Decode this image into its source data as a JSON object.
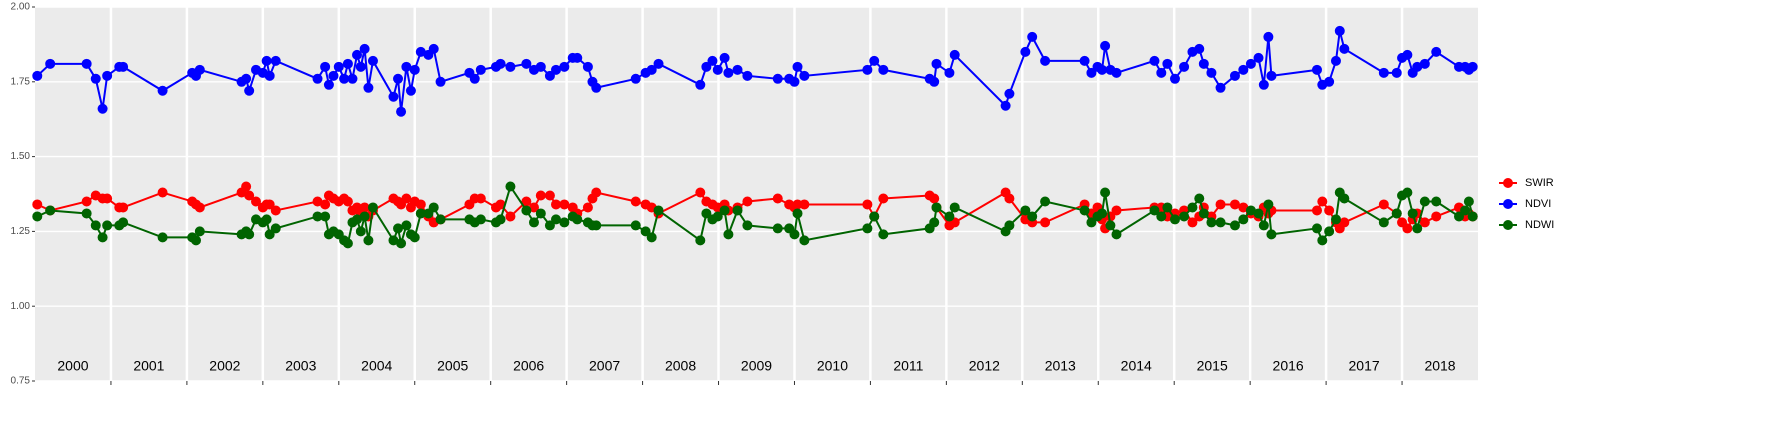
{
  "chart_data": {
    "type": "line",
    "x": [
      2000.03,
      2000.2,
      2000.68,
      2000.8,
      2000.89,
      2000.95,
      2001.11,
      2001.16,
      2001.68,
      2002.07,
      2002.12,
      2002.17,
      2002.72,
      2002.78,
      2002.82,
      2002.91,
      2003.0,
      2003.05,
      2003.09,
      2003.17,
      2003.72,
      2003.82,
      2003.87,
      2003.93,
      2004.0,
      2004.07,
      2004.12,
      2004.18,
      2004.24,
      2004.29,
      2004.34,
      2004.39,
      2004.45,
      2004.72,
      2004.78,
      2004.82,
      2004.89,
      2004.95,
      2005.0,
      2005.08,
      2005.18,
      2005.25,
      2005.34,
      2005.72,
      2005.79,
      2005.87,
      2006.07,
      2006.13,
      2006.26,
      2006.47,
      2006.57,
      2006.66,
      2006.78,
      2006.86,
      2006.97,
      2007.08,
      2007.14,
      2007.28,
      2007.34,
      2007.39,
      2007.91,
      2008.04,
      2008.12,
      2008.21,
      2008.76,
      2008.84,
      2008.92,
      2008.99,
      2009.08,
      2009.13,
      2009.25,
      2009.38,
      2009.78,
      2009.93,
      2010.0,
      2010.04,
      2010.13,
      2010.96,
      2011.05,
      2011.17,
      2011.78,
      2011.84,
      2011.87,
      2012.04,
      2012.11,
      2012.78,
      2012.83,
      2013.04,
      2013.13,
      2013.3,
      2013.82,
      2013.91,
      2013.99,
      2014.05,
      2014.09,
      2014.16,
      2014.24,
      2014.74,
      2014.83,
      2014.91,
      2015.01,
      2015.13,
      2015.24,
      2015.33,
      2015.39,
      2015.49,
      2015.61,
      2015.8,
      2015.91,
      2016.01,
      2016.11,
      2016.18,
      2016.24,
      2016.28,
      2016.88,
      2016.95,
      2017.04,
      2017.13,
      2017.18,
      2017.24,
      2017.76,
      2017.93,
      2018.0,
      2018.07,
      2018.14,
      2018.2,
      2018.3,
      2018.45,
      2018.75,
      2018.83,
      2018.88,
      2018.93
    ],
    "series": [
      {
        "name": "SWIR",
        "color": "#ff0000",
        "values": [
          1.34,
          1.32,
          1.35,
          1.37,
          1.36,
          1.36,
          1.33,
          1.33,
          1.38,
          1.35,
          1.34,
          1.33,
          1.38,
          1.4,
          1.37,
          1.35,
          1.33,
          1.34,
          1.34,
          1.32,
          1.35,
          1.34,
          1.37,
          1.36,
          1.35,
          1.36,
          1.35,
          1.32,
          1.33,
          1.31,
          1.33,
          1.3,
          1.32,
          1.36,
          1.35,
          1.34,
          1.36,
          1.33,
          1.35,
          1.34,
          1.3,
          1.28,
          1.29,
          1.34,
          1.36,
          1.36,
          1.33,
          1.34,
          1.3,
          1.35,
          1.33,
          1.37,
          1.37,
          1.34,
          1.34,
          1.33,
          1.31,
          1.33,
          1.36,
          1.38,
          1.35,
          1.34,
          1.33,
          1.31,
          1.38,
          1.35,
          1.34,
          1.33,
          1.34,
          1.32,
          1.33,
          1.35,
          1.36,
          1.34,
          1.33,
          1.34,
          1.34,
          1.34,
          1.3,
          1.36,
          1.37,
          1.36,
          1.33,
          1.27,
          1.28,
          1.38,
          1.36,
          1.29,
          1.28,
          1.28,
          1.34,
          1.31,
          1.33,
          1.29,
          1.26,
          1.3,
          1.32,
          1.33,
          1.33,
          1.3,
          1.31,
          1.32,
          1.28,
          1.3,
          1.33,
          1.3,
          1.34,
          1.34,
          1.33,
          1.31,
          1.3,
          1.33,
          1.31,
          1.32,
          1.32,
          1.35,
          1.32,
          1.28,
          1.26,
          1.28,
          1.34,
          1.31,
          1.28,
          1.26,
          1.29,
          1.31,
          1.28,
          1.3,
          1.33,
          1.3,
          1.31,
          1.3
        ]
      },
      {
        "name": "NDVI",
        "color": "#0000ff",
        "values": [
          1.77,
          1.81,
          1.81,
          1.76,
          1.66,
          1.77,
          1.8,
          1.8,
          1.72,
          1.78,
          1.77,
          1.79,
          1.75,
          1.76,
          1.72,
          1.79,
          1.78,
          1.82,
          1.77,
          1.82,
          1.76,
          1.8,
          1.74,
          1.77,
          1.8,
          1.76,
          1.81,
          1.76,
          1.84,
          1.8,
          1.86,
          1.73,
          1.82,
          1.7,
          1.76,
          1.65,
          1.8,
          1.72,
          1.79,
          1.85,
          1.84,
          1.86,
          1.75,
          1.78,
          1.76,
          1.79,
          1.8,
          1.81,
          1.8,
          1.81,
          1.79,
          1.8,
          1.77,
          1.79,
          1.8,
          1.83,
          1.83,
          1.8,
          1.75,
          1.73,
          1.76,
          1.78,
          1.79,
          1.81,
          1.74,
          1.8,
          1.82,
          1.79,
          1.83,
          1.78,
          1.79,
          1.77,
          1.76,
          1.76,
          1.75,
          1.8,
          1.77,
          1.79,
          1.82,
          1.79,
          1.76,
          1.75,
          1.81,
          1.78,
          1.84,
          1.67,
          1.71,
          1.85,
          1.9,
          1.82,
          1.82,
          1.78,
          1.8,
          1.79,
          1.87,
          1.79,
          1.78,
          1.82,
          1.78,
          1.81,
          1.76,
          1.8,
          1.85,
          1.86,
          1.81,
          1.78,
          1.73,
          1.77,
          1.79,
          1.81,
          1.83,
          1.74,
          1.9,
          1.77,
          1.79,
          1.74,
          1.75,
          1.82,
          1.92,
          1.86,
          1.78,
          1.78,
          1.83,
          1.84,
          1.78,
          1.8,
          1.81,
          1.85,
          1.8,
          1.8,
          1.79,
          1.8
        ]
      },
      {
        "name": "NDWI",
        "color": "#006400",
        "values": [
          1.3,
          1.32,
          1.31,
          1.27,
          1.23,
          1.27,
          1.27,
          1.28,
          1.23,
          1.23,
          1.22,
          1.25,
          1.24,
          1.25,
          1.24,
          1.29,
          1.28,
          1.29,
          1.24,
          1.26,
          1.3,
          1.3,
          1.24,
          1.25,
          1.24,
          1.22,
          1.21,
          1.28,
          1.29,
          1.25,
          1.3,
          1.22,
          1.33,
          1.22,
          1.26,
          1.21,
          1.27,
          1.24,
          1.23,
          1.31,
          1.31,
          1.33,
          1.29,
          1.29,
          1.28,
          1.29,
          1.28,
          1.29,
          1.4,
          1.32,
          1.28,
          1.31,
          1.27,
          1.29,
          1.28,
          1.3,
          1.29,
          1.28,
          1.27,
          1.27,
          1.27,
          1.25,
          1.23,
          1.32,
          1.22,
          1.31,
          1.29,
          1.3,
          1.32,
          1.24,
          1.32,
          1.27,
          1.26,
          1.26,
          1.24,
          1.31,
          1.22,
          1.26,
          1.3,
          1.24,
          1.26,
          1.28,
          1.33,
          1.3,
          1.33,
          1.25,
          1.27,
          1.32,
          1.3,
          1.35,
          1.32,
          1.28,
          1.3,
          1.31,
          1.38,
          1.27,
          1.24,
          1.32,
          1.3,
          1.33,
          1.29,
          1.3,
          1.33,
          1.36,
          1.31,
          1.28,
          1.28,
          1.27,
          1.29,
          1.32,
          1.31,
          1.27,
          1.34,
          1.24,
          1.26,
          1.22,
          1.25,
          1.29,
          1.38,
          1.36,
          1.28,
          1.31,
          1.37,
          1.38,
          1.31,
          1.26,
          1.35,
          1.35,
          1.3,
          1.32,
          1.35,
          1.3
        ]
      }
    ],
    "xlim": [
      2000,
      2019
    ],
    "xticks": [
      2001,
      2002,
      2003,
      2004,
      2005,
      2006,
      2007,
      2008,
      2009,
      2010,
      2011,
      2012,
      2013,
      2014,
      2015,
      2016,
      2017,
      2018
    ],
    "year_labels": [
      "2000",
      "2001",
      "2002",
      "2003",
      "2004",
      "2005",
      "2006",
      "2007",
      "2008",
      "2009",
      "2010",
      "2011",
      "2012",
      "2013",
      "2014",
      "2015",
      "2016",
      "2017",
      "2018"
    ],
    "ylim": [
      0.75,
      2.0
    ],
    "yticks": [
      {
        "value": 0.75,
        "label": "0.75"
      },
      {
        "value": 1.0,
        "label": "1.00"
      },
      {
        "value": 1.25,
        "label": "1.25"
      },
      {
        "value": 1.5,
        "label": "1.50"
      },
      {
        "value": 1.75,
        "label": "1.75"
      },
      {
        "value": 2.0,
        "label": "2.00"
      }
    ],
    "grid": true,
    "legend": "right"
  }
}
